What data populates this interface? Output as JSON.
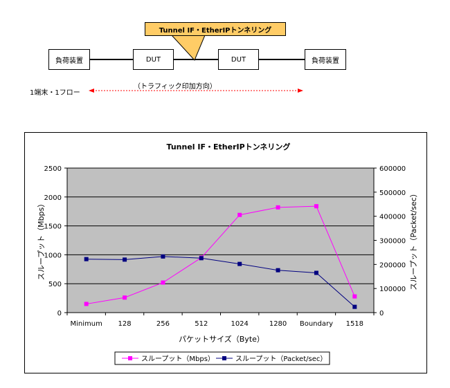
{
  "diagram": {
    "callout_label": "Tunnel IF・EtherIPトンネリング",
    "load_left": "負荷装置",
    "dut_left": "DUT",
    "dut_right": "DUT",
    "load_right": "負荷装置",
    "traffic_direction": "（トラフィック印加方向）",
    "flow_label": "1端末・1フロー"
  },
  "colors": {
    "series_mbps": "#ff00ff",
    "series_pps": "#000080",
    "plot_bg": "#c0c0c0",
    "callout_bg": "#ffcc66",
    "arrow": "#ff0000"
  },
  "chart_data": {
    "type": "line",
    "title": "Tunnel IF・EtherIPトンネリング",
    "xlabel": "パケットサイズ（Byte）",
    "ylabel": "スループット（Mbps）",
    "y2label": "スループット（Packet/sec）",
    "categories": [
      "Minimum",
      "128",
      "256",
      "512",
      "1024",
      "1280",
      "Boundary",
      "1518"
    ],
    "ylim": [
      0,
      2500
    ],
    "yticks": [
      0,
      500,
      1000,
      1500,
      2000,
      2500
    ],
    "y2lim": [
      0,
      600000
    ],
    "y2ticks": [
      0,
      100000,
      200000,
      300000,
      400000,
      500000,
      600000
    ],
    "grid": true,
    "legend_position": "bottom",
    "series": [
      {
        "name": "スループット（Mbps）",
        "axis": "left",
        "marker": "square",
        "values": [
          150,
          260,
          520,
          950,
          1690,
          1820,
          1840,
          280
        ]
      },
      {
        "name": "スループット（Packet/sec）",
        "axis": "right",
        "marker": "square",
        "values": [
          222000,
          220000,
          233000,
          226000,
          202000,
          176000,
          165000,
          24000
        ]
      }
    ]
  }
}
